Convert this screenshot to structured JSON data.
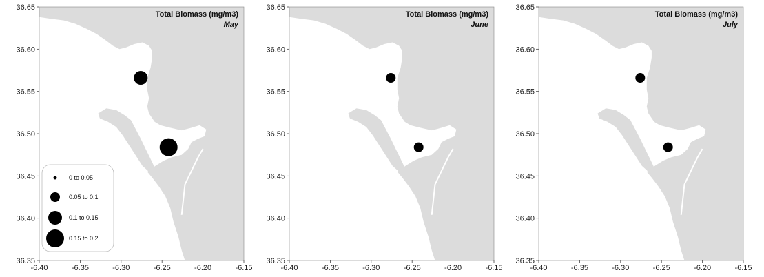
{
  "figure": {
    "title": "Total Biomass (mg/m3)",
    "colors": {
      "land": "#dcdcdc",
      "water": "#ffffff",
      "marker": "#000000",
      "frame": "#888888"
    }
  },
  "chart_data": [
    {
      "type": "scatter",
      "title": "Total Biomass (mg/m3)",
      "subtitle": "May",
      "xlim": [
        -6.4,
        -6.15
      ],
      "ylim": [
        36.35,
        36.65
      ],
      "x_ticks": [
        "-6.40",
        "-6.35",
        "-6.30",
        "-6.25",
        "-6.20",
        "-6.15"
      ],
      "y_ticks": [
        "36.35",
        "36.40",
        "36.45",
        "36.50",
        "36.55",
        "36.60",
        "36.65"
      ],
      "points": [
        {
          "x": -6.276,
          "y": 36.566,
          "class": 2
        },
        {
          "x": -6.242,
          "y": 36.484,
          "class": 3
        }
      ]
    },
    {
      "type": "scatter",
      "title": "Total Biomass (mg/m3)",
      "subtitle": "June",
      "xlim": [
        -6.4,
        -6.15
      ],
      "ylim": [
        36.35,
        36.65
      ],
      "x_ticks": [
        "-6.40",
        "-6.35",
        "-6.30",
        "-6.25",
        "-6.20",
        "-6.15"
      ],
      "y_ticks": [
        "36.35",
        "36.40",
        "36.45",
        "36.50",
        "36.55",
        "36.60",
        "36.65"
      ],
      "points": [
        {
          "x": -6.276,
          "y": 36.566,
          "class": 1
        },
        {
          "x": -6.242,
          "y": 36.484,
          "class": 1
        }
      ]
    },
    {
      "type": "scatter",
      "title": "Total Biomass (mg/m3)",
      "subtitle": "July",
      "xlim": [
        -6.4,
        -6.15
      ],
      "ylim": [
        36.35,
        36.65
      ],
      "x_ticks": [
        "-6.40",
        "-6.35",
        "-6.30",
        "-6.25",
        "-6.20",
        "-6.15"
      ],
      "y_ticks": [
        "36.35",
        "36.40",
        "36.45",
        "36.50",
        "36.55",
        "36.60",
        "36.65"
      ],
      "points": [
        {
          "x": -6.276,
          "y": 36.566,
          "class": 1
        },
        {
          "x": -6.242,
          "y": 36.484,
          "class": 1
        }
      ]
    }
  ],
  "legend": {
    "placement": "bottom-left",
    "items": [
      {
        "from": "0",
        "to_word": "to",
        "to": "0.05"
      },
      {
        "from": "0.05",
        "to_word": "to",
        "to": "0.1"
      },
      {
        "from": "0.1",
        "to_word": "to",
        "to": "0.15"
      },
      {
        "from": "0.15",
        "to_word": "to",
        "to": "0.2"
      }
    ]
  }
}
